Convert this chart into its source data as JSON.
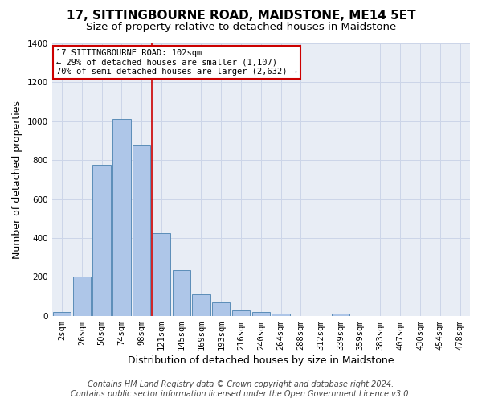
{
  "title": "17, SITTINGBOURNE ROAD, MAIDSTONE, ME14 5ET",
  "subtitle": "Size of property relative to detached houses in Maidstone",
  "xlabel": "Distribution of detached houses by size in Maidstone",
  "ylabel": "Number of detached properties",
  "footer_line1": "Contains HM Land Registry data © Crown copyright and database right 2024.",
  "footer_line2": "Contains public sector information licensed under the Open Government Licence v3.0.",
  "bar_labels": [
    "2sqm",
    "26sqm",
    "50sqm",
    "74sqm",
    "98sqm",
    "121sqm",
    "145sqm",
    "169sqm",
    "193sqm",
    "216sqm",
    "240sqm",
    "264sqm",
    "288sqm",
    "312sqm",
    "339sqm",
    "359sqm",
    "383sqm",
    "407sqm",
    "430sqm",
    "454sqm",
    "478sqm"
  ],
  "bar_values": [
    20,
    200,
    775,
    1010,
    880,
    425,
    235,
    110,
    70,
    27,
    20,
    10,
    0,
    0,
    10,
    0,
    0,
    0,
    0,
    0,
    0
  ],
  "bar_color": "#aec6e8",
  "bar_edge_color": "#5b8db8",
  "annotation_box_text": "17 SITTINGBOURNE ROAD: 102sqm\n← 29% of detached houses are smaller (1,107)\n70% of semi-detached houses are larger (2,632) →",
  "annotation_box_color": "#ffffff",
  "annotation_box_edge_color": "#cc0000",
  "vline_color": "#cc0000",
  "vline_x_index": 4.5,
  "ylim": [
    0,
    1400
  ],
  "yticks": [
    0,
    200,
    400,
    600,
    800,
    1000,
    1200,
    1400
  ],
  "grid_color": "#ccd5e8",
  "bg_color": "#e8edf5",
  "title_fontsize": 11,
  "subtitle_fontsize": 9.5,
  "ylabel_fontsize": 9,
  "xlabel_fontsize": 9,
  "tick_fontsize": 7.5,
  "annotation_fontsize": 7.5,
  "footer_fontsize": 7
}
